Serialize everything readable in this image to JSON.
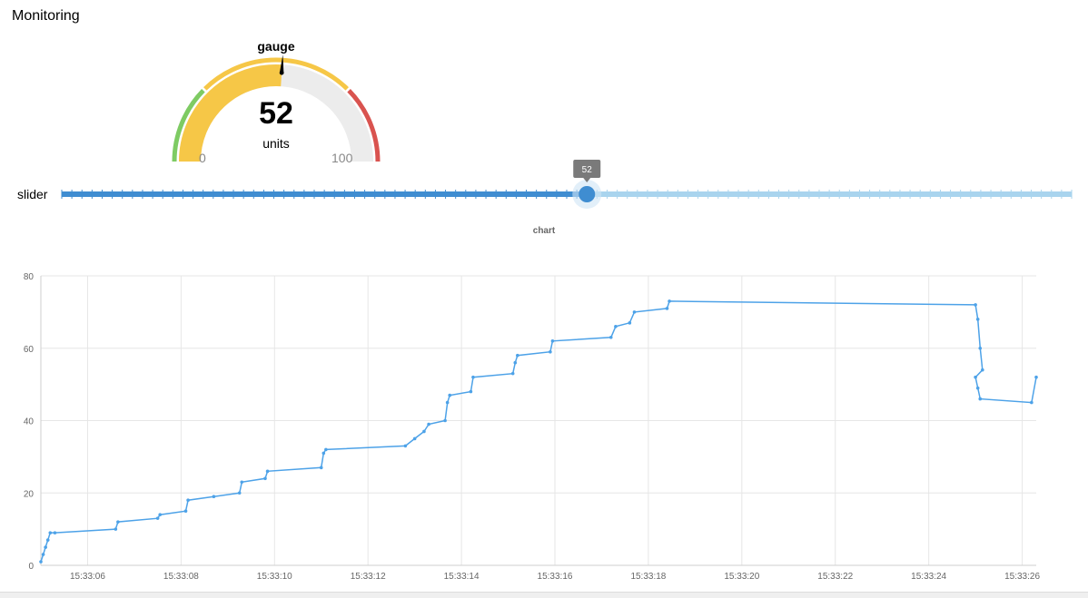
{
  "app": {
    "title": "Monitoring"
  },
  "gauge": {
    "title": "gauge",
    "value": 52,
    "value_text": "52",
    "units": "units",
    "min": 0,
    "max": 100,
    "min_label": "0",
    "max_label": "100",
    "colors": {
      "low": "#7ecb63",
      "mid": "#f6c747",
      "high": "#d9534f",
      "track": "#ececec",
      "needle": "#000000"
    },
    "segments": [
      {
        "from": 0,
        "to": 25,
        "color": "#7ecb63"
      },
      {
        "from": 25,
        "to": 75,
        "color": "#f6c747"
      },
      {
        "from": 75,
        "to": 100,
        "color": "#d9534f"
      }
    ]
  },
  "slider": {
    "label": "slider",
    "value": 52,
    "value_text": "52",
    "min": 0,
    "max": 100,
    "colors": {
      "fill": "#3f8dd1",
      "track": "#a9d4ee",
      "thumb": "#3f8dd1",
      "tooltip": "#7a7a7a"
    }
  },
  "chart": {
    "title": "chart",
    "line_color": "#4da2e8"
  },
  "chart_data": {
    "type": "line",
    "title": "chart",
    "xlabel": "",
    "ylabel": "",
    "ylim": [
      0,
      80
    ],
    "yticks": [
      "0",
      "20",
      "40",
      "60",
      "80"
    ],
    "xlim": [
      "15:33:05.0",
      "15:33:26.3"
    ],
    "xticks": [
      "15:33:06",
      "15:33:08",
      "15:33:10",
      "15:33:12",
      "15:33:14",
      "15:33:16",
      "15:33:18",
      "15:33:20",
      "15:33:22",
      "15:33:24",
      "15:33:26"
    ],
    "grid": true,
    "series": [
      {
        "x": [
          "15:33:05.0",
          "15:33:05.05",
          "15:33:05.1",
          "15:33:05.15",
          "15:33:05.2",
          "15:33:05.3",
          "15:33:06.6",
          "15:33:06.65",
          "15:33:07.5",
          "15:33:07.55",
          "15:33:08.1",
          "15:33:08.15",
          "15:33:08.7",
          "15:33:09.25",
          "15:33:09.3",
          "15:33:09.8",
          "15:33:09.85",
          "15:33:11.0",
          "15:33:11.05",
          "15:33:11.1",
          "15:33:12.8",
          "15:33:13.0",
          "15:33:13.2",
          "15:33:13.3",
          "15:33:13.65",
          "15:33:13.7",
          "15:33:13.75",
          "15:33:14.2",
          "15:33:14.25",
          "15:33:15.1",
          "15:33:15.15",
          "15:33:15.2",
          "15:33:15.9",
          "15:33:15.95",
          "15:33:17.2",
          "15:33:17.3",
          "15:33:17.6",
          "15:33:17.7",
          "15:33:18.4",
          "15:33:18.45",
          "15:33:25.0",
          "15:33:25.05",
          "15:33:25.1",
          "15:33:25.15",
          "15:33:25.0",
          "15:33:25.05",
          "15:33:25.1",
          "15:33:26.2",
          "15:33:26.3"
        ],
        "y": [
          1,
          3,
          5,
          7,
          9,
          9,
          10,
          12,
          13,
          14,
          15,
          18,
          19,
          20,
          23,
          24,
          26,
          27,
          31,
          32,
          33,
          35,
          37,
          39,
          40,
          45,
          47,
          48,
          52,
          53,
          56,
          58,
          59,
          62,
          63,
          66,
          67,
          70,
          71,
          73,
          72,
          68,
          60,
          54,
          52,
          49,
          46,
          45,
          52
        ]
      }
    ]
  }
}
